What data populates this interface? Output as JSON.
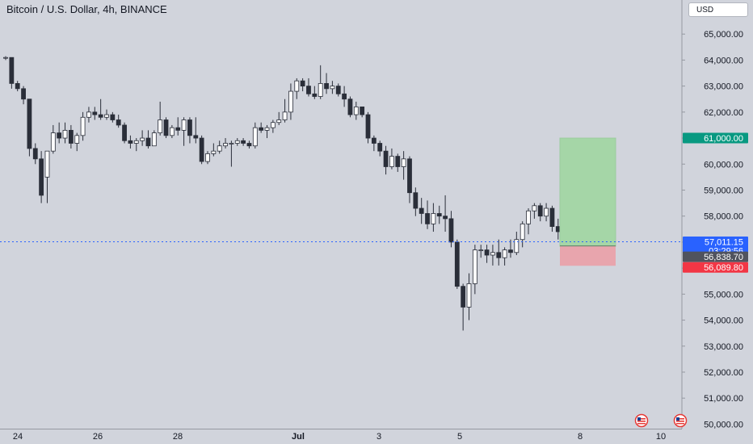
{
  "chart_title": "Bitcoin / U.S. Dollar, 4h, BINANCE",
  "currency_label": "USD",
  "chart_data": {
    "type": "candlestick",
    "title": "Bitcoin / U.S. Dollar, 4h, BINANCE",
    "ylim": [
      49950,
      65700
    ],
    "y_ticks": [
      "65,000.00",
      "64,000.00",
      "63,000.00",
      "62,000.00",
      "61,000.00",
      "60,000.00",
      "59,000.00",
      "58,000.00",
      "57,000.00",
      "56,000.00",
      "55,000.00",
      "54,000.00",
      "53,000.00",
      "52,000.00",
      "51,000.00",
      "50,000.00"
    ],
    "x_labels": [
      "24",
      "26",
      "28",
      "Jul",
      "3",
      "5",
      "8",
      "10"
    ],
    "candles": [
      [
        64100,
        64150,
        64000,
        64100
      ],
      [
        64100,
        64100,
        62900,
        63100
      ],
      [
        63100,
        63200,
        62800,
        62900
      ],
      [
        62900,
        63000,
        62300,
        62500
      ],
      [
        62500,
        62500,
        60300,
        60600
      ],
      [
        60600,
        60800,
        60000,
        60200
      ],
      [
        60200,
        60500,
        58500,
        58800
      ],
      [
        59500,
        60500,
        58500,
        60500
      ],
      [
        60500,
        61500,
        60400,
        61200
      ],
      [
        61200,
        61600,
        60800,
        61000
      ],
      [
        61000,
        61600,
        60800,
        61300
      ],
      [
        61300,
        61500,
        60600,
        60800
      ],
      [
        60800,
        61200,
        60500,
        61100
      ],
      [
        61100,
        62000,
        60900,
        61800
      ],
      [
        61800,
        62200,
        61600,
        62000
      ],
      [
        62000,
        62200,
        61700,
        61900
      ],
      [
        61900,
        62500,
        61700,
        61800
      ],
      [
        61800,
        62100,
        61700,
        61900
      ],
      [
        61900,
        62000,
        61600,
        61700
      ],
      [
        61700,
        61900,
        61400,
        61500
      ],
      [
        61500,
        61600,
        60800,
        60900
      ],
      [
        60900,
        61100,
        60600,
        60800
      ],
      [
        60800,
        61000,
        60500,
        60900
      ],
      [
        60900,
        61300,
        60700,
        61000
      ],
      [
        61000,
        61300,
        60600,
        60700
      ],
      [
        60700,
        61300,
        60700,
        61200
      ],
      [
        61200,
        62400,
        61100,
        61700
      ],
      [
        61700,
        61800,
        61000,
        61100
      ],
      [
        61100,
        61500,
        61000,
        61400
      ],
      [
        61400,
        61800,
        61100,
        61300
      ],
      [
        61300,
        61800,
        60700,
        61700
      ],
      [
        61700,
        61800,
        60800,
        61100
      ],
      [
        61100,
        61800,
        60800,
        61000
      ],
      [
        61000,
        61100,
        60000,
        60100
      ],
      [
        60100,
        60500,
        60000,
        60400
      ],
      [
        60400,
        60800,
        60300,
        60500
      ],
      [
        60500,
        60900,
        60400,
        60700
      ],
      [
        60700,
        61000,
        60600,
        60800
      ],
      [
        60800,
        60900,
        59900,
        60800
      ],
      [
        60800,
        61000,
        60700,
        60900
      ],
      [
        60900,
        61000,
        60700,
        60800
      ],
      [
        60800,
        60900,
        60600,
        60700
      ],
      [
        60700,
        61600,
        60600,
        61400
      ],
      [
        61400,
        61600,
        61200,
        61300
      ],
      [
        61300,
        61500,
        61000,
        61400
      ],
      [
        61400,
        61700,
        61200,
        61600
      ],
      [
        61600,
        62000,
        61500,
        61700
      ],
      [
        61700,
        62500,
        61600,
        62000
      ],
      [
        62000,
        63100,
        61700,
        62800
      ],
      [
        62800,
        63300,
        62500,
        63200
      ],
      [
        63200,
        63300,
        62800,
        63000
      ],
      [
        63000,
        63300,
        62600,
        62700
      ],
      [
        62700,
        63000,
        62500,
        62600
      ],
      [
        62600,
        63800,
        62500,
        63100
      ],
      [
        63100,
        63500,
        62700,
        62900
      ],
      [
        62900,
        63200,
        62700,
        63000
      ],
      [
        63000,
        63100,
        62600,
        62700
      ],
      [
        62700,
        63000,
        62200,
        62500
      ],
      [
        62500,
        62600,
        61800,
        61900
      ],
      [
        61900,
        62400,
        61700,
        62200
      ],
      [
        62200,
        62200,
        61800,
        61900
      ],
      [
        61900,
        62000,
        60800,
        61000
      ],
      [
        61000,
        61100,
        60500,
        60800
      ],
      [
        60800,
        60900,
        60300,
        60500
      ],
      [
        60500,
        60700,
        59600,
        59900
      ],
      [
        59900,
        60600,
        59800,
        60300
      ],
      [
        60300,
        60400,
        59700,
        59900
      ],
      [
        59900,
        60500,
        59400,
        60200
      ],
      [
        60200,
        60300,
        58500,
        58900
      ],
      [
        58900,
        59100,
        58000,
        58300
      ],
      [
        58300,
        58700,
        57700,
        58100
      ],
      [
        58100,
        58600,
        57500,
        57700
      ],
      [
        57700,
        58500,
        57400,
        58100
      ],
      [
        58100,
        58400,
        57700,
        58000
      ],
      [
        58000,
        58800,
        57400,
        57900
      ],
      [
        57900,
        58200,
        56800,
        57000
      ],
      [
        57000,
        57100,
        55200,
        55300
      ],
      [
        55300,
        55400,
        53600,
        54500
      ],
      [
        54500,
        55800,
        54000,
        55400
      ],
      [
        55400,
        56900,
        55000,
        56700
      ],
      [
        56700,
        56900,
        56400,
        56700
      ],
      [
        56700,
        56900,
        56200,
        56500
      ],
      [
        56500,
        56900,
        56100,
        56600
      ],
      [
        56600,
        57100,
        56100,
        56400
      ],
      [
        56400,
        56800,
        56100,
        56700
      ],
      [
        56700,
        57100,
        56400,
        56600
      ],
      [
        56600,
        57400,
        56500,
        57100
      ],
      [
        57100,
        57800,
        56800,
        57700
      ],
      [
        57700,
        58300,
        57300,
        58200
      ],
      [
        58200,
        58500,
        57900,
        58400
      ],
      [
        58400,
        58500,
        57800,
        58000
      ],
      [
        58000,
        58500,
        57800,
        58300
      ],
      [
        58300,
        58400,
        57400,
        57600
      ],
      [
        57600,
        57900,
        57100,
        57400
      ],
      [
        57400,
        57500,
        56500,
        56900
      ],
      [
        56838,
        57100,
        56700,
        57011
      ]
    ],
    "current_price": {
      "price": "57,011.15",
      "countdown": "03:29:56",
      "value": 57011.15
    },
    "position": {
      "entry": "56,838.70",
      "entry_value": 56838.7,
      "take_profit": "61,000.00",
      "take_profit_value": 61000,
      "stop_loss": "56,089.80",
      "stop_loss_value": 56089.8
    },
    "colors": {
      "background": "#d1d4dc",
      "up_body": "#ffffff",
      "down_body": "#2a2e39",
      "wick": "#2a2e39",
      "price_line": "#2962ff",
      "profit_zone": "#a5d6a7",
      "loss_zone": "#e8a5ad",
      "profit_label": "#089981",
      "loss_label": "#f23645",
      "entry_label": "#50535e",
      "current_label": "#2962ff"
    }
  }
}
